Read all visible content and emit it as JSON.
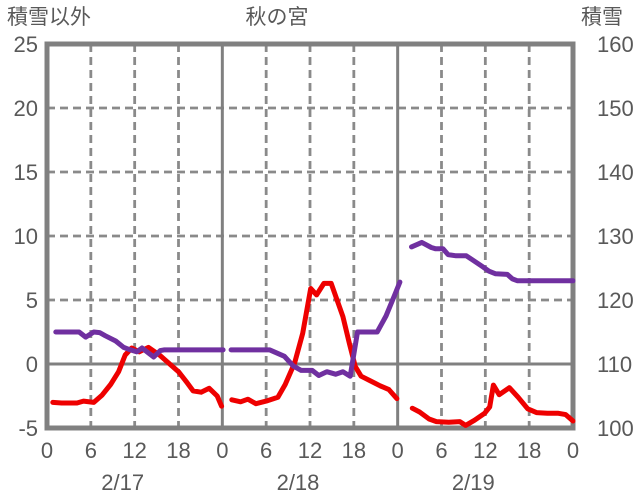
{
  "title": {
    "left_axis_title": "積雪以外",
    "chart_title": "秋の宮",
    "right_axis_title": "積雪"
  },
  "colors": {
    "background": "#ffffff",
    "border": "#808080",
    "grid_solid": "#808080",
    "grid_dashed": "#8a8a8a",
    "text": "#595959",
    "red_series": "#ee0000",
    "purple_series": "#7030a0"
  },
  "chart_data": {
    "type": "line",
    "title": "秋の宮",
    "left_axis": {
      "title": "積雪以外",
      "ticks": [
        "25",
        "20",
        "15",
        "10",
        "5",
        "0",
        "-5"
      ],
      "max": 25,
      "min": -5,
      "zero_line_solid": true
    },
    "right_axis": {
      "title": "積雪",
      "ticks": [
        "160",
        "150",
        "140",
        "130",
        "120",
        "110",
        "100"
      ],
      "max": 160,
      "min": 100
    },
    "x_axis": {
      "hour_tick_labels": [
        "0",
        "6",
        "12",
        "18",
        "0",
        "6",
        "12",
        "18",
        "0",
        "6",
        "12",
        "18",
        "0"
      ],
      "date_labels": [
        "2/17",
        "2/18",
        "2/19"
      ],
      "hours_total": 72,
      "gridline_every_hours": 6,
      "solid_gridline_every_hours": 24
    },
    "legend_position": "none",
    "grid": true,
    "series": [
      {
        "name": "積雪以外",
        "color": "#ee0000",
        "axis": "left",
        "segments": [
          [
            [
              0.8,
              -3.0
            ],
            [
              2,
              -3.05
            ],
            [
              4.1,
              -3.05
            ],
            [
              5,
              -2.9
            ],
            [
              6.4,
              -3.0
            ],
            [
              7.5,
              -2.45
            ],
            [
              8.7,
              -1.6
            ],
            [
              9.8,
              -0.6
            ],
            [
              10.7,
              0.7
            ],
            [
              11.6,
              1.25
            ],
            [
              12.6,
              0.95
            ],
            [
              13.9,
              1.3
            ],
            [
              15.4,
              0.7
            ],
            [
              16.6,
              0.1
            ],
            [
              18,
              -0.6
            ],
            [
              19.1,
              -1.4
            ],
            [
              20,
              -2.1
            ],
            [
              21.1,
              -2.2
            ],
            [
              22.2,
              -1.9
            ],
            [
              23.3,
              -2.5
            ],
            [
              23.9,
              -3.3
            ]
          ],
          [
            [
              25.3,
              -2.8
            ],
            [
              26.5,
              -2.95
            ],
            [
              27.5,
              -2.75
            ],
            [
              28.6,
              -3.1
            ],
            [
              30,
              -2.9
            ],
            [
              31.6,
              -2.6
            ],
            [
              32.6,
              -1.6
            ],
            [
              33.9,
              0.1
            ],
            [
              35,
              2.4
            ],
            [
              36.1,
              5.9
            ],
            [
              36.9,
              5.4
            ],
            [
              37.9,
              6.3
            ],
            [
              38.9,
              6.3
            ],
            [
              40.5,
              3.7
            ],
            [
              41.4,
              1.6
            ],
            [
              42.2,
              -0.2
            ],
            [
              43,
              -0.95
            ],
            [
              44.2,
              -1.3
            ],
            [
              45.6,
              -1.7
            ],
            [
              46.8,
              -2.0
            ],
            [
              47.9,
              -2.7
            ]
          ],
          [
            [
              50,
              -3.45
            ],
            [
              51,
              -3.75
            ],
            [
              52.3,
              -4.3
            ],
            [
              53.3,
              -4.5
            ],
            [
              55,
              -4.55
            ],
            [
              56.5,
              -4.5
            ],
            [
              57.3,
              -4.8
            ],
            [
              58.5,
              -4.4
            ],
            [
              59.9,
              -3.85
            ],
            [
              60.6,
              -3.35
            ],
            [
              61.1,
              -1.65
            ],
            [
              61.9,
              -2.4
            ],
            [
              63.3,
              -1.85
            ],
            [
              64.5,
              -2.6
            ],
            [
              65.8,
              -3.5
            ],
            [
              67,
              -3.8
            ],
            [
              68.5,
              -3.85
            ],
            [
              70,
              -3.85
            ],
            [
              71,
              -3.95
            ],
            [
              72,
              -4.45
            ]
          ]
        ]
      },
      {
        "name": "積雪",
        "color": "#7030a0",
        "axis": "right",
        "segments": [
          [
            [
              1.2,
              115
            ],
            [
              4.4,
              115
            ],
            [
              5.3,
              114.2
            ],
            [
              6.4,
              115
            ],
            [
              7.2,
              114.9
            ],
            [
              8,
              114.4
            ],
            [
              9.4,
              113.6
            ],
            [
              10.5,
              112.6
            ],
            [
              11.2,
              112.3
            ],
            [
              12.3,
              111.9
            ],
            [
              13,
              112.5
            ],
            [
              14.6,
              111.1
            ],
            [
              15.5,
              112.1
            ],
            [
              16,
              112.2
            ],
            [
              24.1,
              112.2
            ]
          ],
          [
            [
              25.2,
              112.2
            ],
            [
              30.5,
              112.2
            ],
            [
              32.5,
              111.2
            ],
            [
              33.7,
              109.7
            ],
            [
              34.8,
              109
            ],
            [
              36.3,
              109
            ],
            [
              37.2,
              108.2
            ],
            [
              38.3,
              108.8
            ],
            [
              39.5,
              108.4
            ],
            [
              40.5,
              108.8
            ],
            [
              41.5,
              108.1
            ],
            [
              42.5,
              115
            ],
            [
              45.2,
              115
            ],
            [
              46.4,
              117.5
            ],
            [
              47.6,
              120.8
            ],
            [
              48.3,
              122.8
            ]
          ],
          [
            [
              49.9,
              128.3
            ],
            [
              51.3,
              129
            ],
            [
              52.6,
              128.2
            ],
            [
              53.2,
              128
            ],
            [
              54.2,
              128
            ],
            [
              54.9,
              127.1
            ],
            [
              56,
              126.9
            ],
            [
              57.4,
              126.9
            ],
            [
              58.2,
              126.3
            ],
            [
              59.5,
              125.3
            ],
            [
              60.5,
              124.5
            ],
            [
              61.4,
              124.1
            ],
            [
              63,
              124
            ],
            [
              63.7,
              123.3
            ],
            [
              64.4,
              123
            ],
            [
              72,
              123
            ]
          ]
        ]
      }
    ]
  }
}
